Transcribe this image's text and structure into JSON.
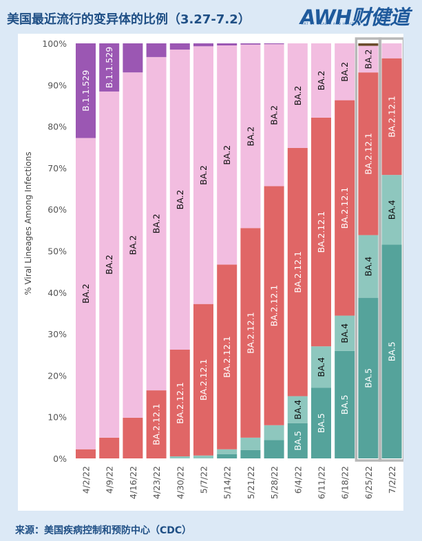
{
  "header": {
    "title": "美国最近流行的变异体的比例（3.27-7.2）",
    "logo_text": "AWH财健道",
    "logo_subtitle": "ART OF WEALTH AND HEALTH"
  },
  "footer": {
    "source": "来源：美国疾病控制和预防中心（CDC）"
  },
  "colors": {
    "BA.5": "#55a39b",
    "BA.4": "#8ec7be",
    "BA.2.12.1": "#e06666",
    "BA.2": "#f2bde0",
    "B.1.1.529": "#9b57b3",
    "other_top": "#6c4c2c",
    "highlight_frame": "#b8b8b8"
  },
  "chart_data": {
    "type": "bar",
    "stacked": true,
    "ylabel": "% Viral Lineages Among Infections",
    "xlabel": "",
    "ylim": [
      0,
      100
    ],
    "yticks": [
      "0%",
      "10%",
      "20%",
      "30%",
      "40%",
      "50%",
      "60%",
      "70%",
      "80%",
      "90%",
      "100%"
    ],
    "categories": [
      "4/2/22",
      "4/9/22",
      "4/16/22",
      "4/23/22",
      "4/30/22",
      "5/7/22",
      "5/14/22",
      "5/21/22",
      "5/28/22",
      "6/4/22",
      "6/11/22",
      "6/18/22",
      "6/25/22",
      "7/2/22"
    ],
    "highlighted_categories": [
      "6/25/22",
      "7/2/22"
    ],
    "series": [
      {
        "name": "BA.5",
        "values": [
          0,
          0,
          0,
          0,
          0,
          0,
          1,
          2,
          4.4,
          8.5,
          17,
          25.9,
          38.7,
          51.5
        ]
      },
      {
        "name": "BA.4",
        "values": [
          0,
          0,
          0,
          0,
          0.5,
          0.7,
          1.2,
          3,
          3.6,
          6.5,
          10,
          8.5,
          15.1,
          16.8
        ]
      },
      {
        "name": "BA.2.12.1",
        "values": [
          2.2,
          5,
          9.8,
          16.4,
          25.7,
          36.5,
          44.5,
          50.5,
          57.6,
          59.8,
          55.1,
          51.9,
          39.2,
          28.1
        ]
      },
      {
        "name": "BA.2",
        "values": [
          75,
          83.4,
          83.2,
          80.3,
          72.3,
          62.1,
          52.8,
          44.2,
          34.2,
          25.2,
          17.9,
          13.7,
          6.4,
          3.6
        ]
      },
      {
        "name": "B.1.1.529",
        "values": [
          22.8,
          11.6,
          7,
          3.3,
          1.5,
          0.7,
          0.5,
          0.3,
          0.2,
          0,
          0,
          0,
          0,
          0
        ]
      }
    ],
    "bar_labels": [
      {
        "category": "4/2/22",
        "series": "BA.2",
        "text": "BA.2"
      },
      {
        "category": "4/2/22",
        "series": "B.1.1.529",
        "text": "B.1.1.529"
      },
      {
        "category": "4/9/22",
        "series": "BA.2",
        "text": "BA.2"
      },
      {
        "category": "4/9/22",
        "series": "B.1.1.529",
        "text": "B.1.1.529"
      },
      {
        "category": "4/16/22",
        "series": "BA.2",
        "text": "BA.2"
      },
      {
        "category": "4/23/22",
        "series": "BA.2.12.1",
        "text": "BA.2.12.1"
      },
      {
        "category": "4/23/22",
        "series": "BA.2",
        "text": "BA.2"
      },
      {
        "category": "4/30/22",
        "series": "BA.2.12.1",
        "text": "BA.2.12.1"
      },
      {
        "category": "4/30/22",
        "series": "BA.2",
        "text": "BA.2"
      },
      {
        "category": "5/7/22",
        "series": "BA.2.12.1",
        "text": "BA.2.12.1"
      },
      {
        "category": "5/7/22",
        "series": "BA.2",
        "text": "BA.2"
      },
      {
        "category": "5/14/22",
        "series": "BA.2.12.1",
        "text": "BA.2.12.1"
      },
      {
        "category": "5/14/22",
        "series": "BA.2",
        "text": "BA.2"
      },
      {
        "category": "5/21/22",
        "series": "BA.2.12.1",
        "text": "BA.2.12.1"
      },
      {
        "category": "5/21/22",
        "series": "BA.2",
        "text": "BA.2"
      },
      {
        "category": "5/28/22",
        "series": "BA.2.12.1",
        "text": "BA.2.12.1"
      },
      {
        "category": "5/28/22",
        "series": "BA.2",
        "text": "BA.2"
      },
      {
        "category": "6/4/22",
        "series": "BA.5",
        "text": "BA.5"
      },
      {
        "category": "6/4/22",
        "series": "BA.4",
        "text": "BA.4"
      },
      {
        "category": "6/4/22",
        "series": "BA.2.12.1",
        "text": "BA.2.12.1"
      },
      {
        "category": "6/4/22",
        "series": "BA.2",
        "text": "BA.2"
      },
      {
        "category": "6/11/22",
        "series": "BA.5",
        "text": "BA.5"
      },
      {
        "category": "6/11/22",
        "series": "BA.4",
        "text": "BA.4"
      },
      {
        "category": "6/11/22",
        "series": "BA.2.12.1",
        "text": "BA.2.12.1"
      },
      {
        "category": "6/11/22",
        "series": "BA.2",
        "text": "BA.2"
      },
      {
        "category": "6/18/22",
        "series": "BA.5",
        "text": "BA.5"
      },
      {
        "category": "6/18/22",
        "series": "BA.4",
        "text": "BA.4"
      },
      {
        "category": "6/18/22",
        "series": "BA.2.12.1",
        "text": "BA.2.12.1"
      },
      {
        "category": "6/18/22",
        "series": "BA.2",
        "text": "BA.2"
      },
      {
        "category": "6/25/22",
        "series": "BA.5",
        "text": "BA.5"
      },
      {
        "category": "6/25/22",
        "series": "BA.4",
        "text": "BA.4"
      },
      {
        "category": "6/25/22",
        "series": "BA.2.12.1",
        "text": "BA.2.12.1"
      },
      {
        "category": "6/25/22",
        "series": "BA.2",
        "text": "BA.2"
      },
      {
        "category": "7/2/22",
        "series": "BA.5",
        "text": "BA.5"
      },
      {
        "category": "7/2/22",
        "series": "BA.4",
        "text": "BA.4"
      },
      {
        "category": "7/2/22",
        "series": "BA.2.12.1",
        "text": "BA.2.12.1"
      }
    ],
    "grid": false,
    "legend": "none"
  }
}
